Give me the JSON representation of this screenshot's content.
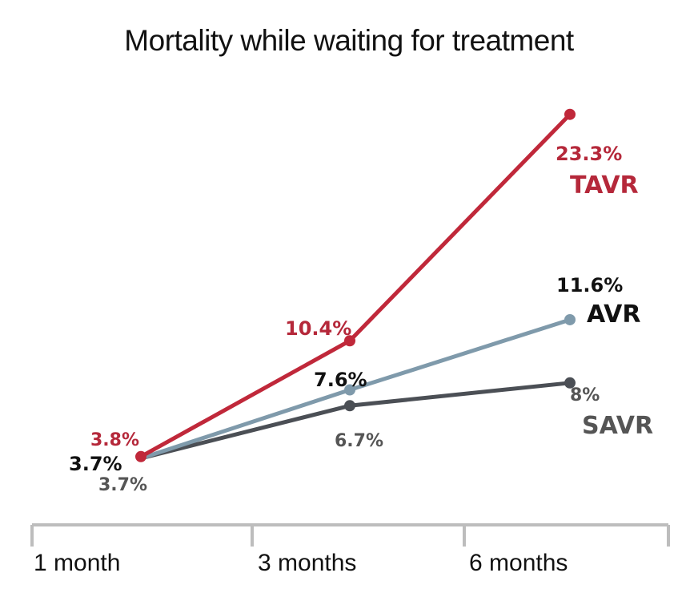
{
  "chart_data": {
    "type": "line",
    "title": "Mortality while waiting for treatment",
    "xlabel": "",
    "ylabel": "",
    "categories": [
      "1 month",
      "3 months",
      "6 months"
    ],
    "grid": false,
    "series": [
      {
        "name": "TAVR",
        "color": "#c0283a",
        "values": [
          3.8,
          10.4,
          23.3
        ],
        "labels": [
          "3.8%",
          "10.4%",
          "23.3%"
        ]
      },
      {
        "name": "AVR",
        "color": "#7f9aab",
        "values": [
          3.7,
          7.6,
          11.6
        ],
        "labels": [
          "3.7%",
          "7.6%",
          "11.6%"
        ]
      },
      {
        "name": "SAVR",
        "color": "#4b4f55",
        "values": [
          3.7,
          6.7,
          8
        ],
        "labels": [
          "3.7%",
          "6.7%",
          "8%"
        ]
      }
    ]
  },
  "label_colors": {
    "TAVR": "#b5283a",
    "AVR": "#111111",
    "SAVR": "#555555"
  }
}
